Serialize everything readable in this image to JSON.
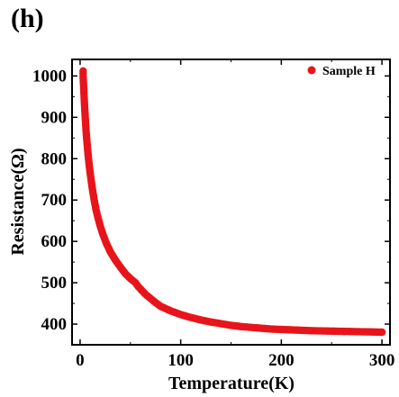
{
  "panel_label": "(h)",
  "chart_data": {
    "type": "scatter",
    "xlabel": "Temperature(K)",
    "ylabel": "Resistance(Ω)",
    "xlim": [
      -8,
      308
    ],
    "ylim": [
      350,
      1040
    ],
    "xticks": [
      0,
      100,
      200,
      300
    ],
    "yticks": [
      400,
      500,
      600,
      700,
      800,
      900,
      1000
    ],
    "grid": false,
    "legend_position": "top-right",
    "series": [
      {
        "name": "Sample H",
        "color": "#e8141b",
        "x": [
          3,
          3,
          3.5,
          4,
          4.5,
          5,
          5.5,
          6,
          7,
          8,
          9,
          10,
          12,
          14,
          16,
          18,
          20,
          23,
          26,
          30,
          35,
          40,
          45,
          50,
          55,
          58,
          60,
          65,
          70,
          75,
          80,
          90,
          100,
          110,
          120,
          130,
          140,
          150,
          160,
          170,
          180,
          190,
          200,
          210,
          220,
          230,
          240,
          250,
          260,
          270,
          280,
          290,
          300
        ],
        "y": [
          1012,
          1000,
          975,
          950,
          925,
          905,
          885,
          865,
          835,
          808,
          785,
          765,
          730,
          700,
          675,
          655,
          637,
          615,
          596,
          575,
          555,
          538,
          522,
          510,
          500,
          490,
          485,
          472,
          462,
          452,
          443,
          432,
          423,
          416,
          410,
          405,
          401,
          397,
          394,
          392,
          390,
          388,
          387,
          386,
          385,
          384,
          383.5,
          383,
          382.5,
          382,
          381.5,
          381,
          380.5
        ]
      }
    ]
  }
}
